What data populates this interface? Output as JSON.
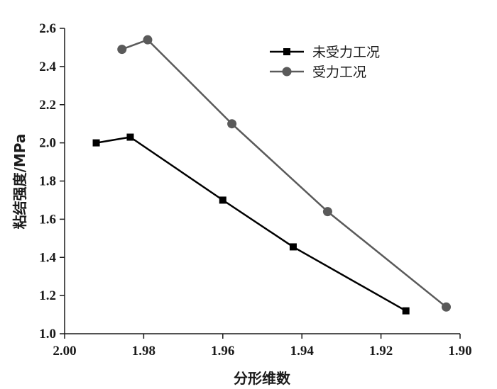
{
  "chart_data": {
    "type": "line",
    "title": "",
    "xlabel": "分形维数",
    "ylabel": "粘结强度/MPa",
    "xlim": [
      2.0,
      1.9
    ],
    "ylim": [
      1.0,
      2.6
    ],
    "x_ticks": [
      "2.00",
      "1.98",
      "1.96",
      "1.94",
      "1.92",
      "1.90"
    ],
    "y_ticks": [
      "1.0",
      "1.2",
      "1.4",
      "1.6",
      "1.8",
      "2.0",
      "2.2",
      "2.4",
      "2.6"
    ],
    "x_reversed": true,
    "grid": false,
    "legend_position": "top-right",
    "series": [
      {
        "name": "未受力工况",
        "marker": "square",
        "color": "#000000",
        "x": [
          1.992,
          1.9834,
          1.96,
          1.9422,
          1.9137
        ],
        "y": [
          2.0,
          2.03,
          1.7,
          1.455,
          1.12
        ]
      },
      {
        "name": "受力工况",
        "marker": "circle",
        "color": "#5a5a5a",
        "x": [
          1.9855,
          1.979,
          1.9577,
          1.9335,
          1.9035
        ],
        "y": [
          2.49,
          2.54,
          2.1,
          1.64,
          1.14
        ]
      }
    ]
  }
}
